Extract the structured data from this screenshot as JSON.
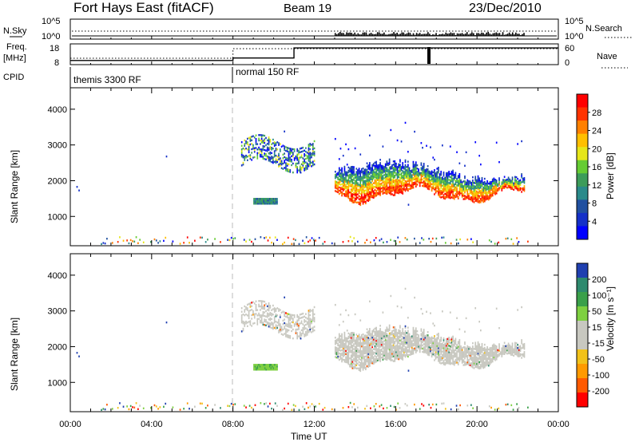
{
  "header": {
    "title": "Fort Hays East (fitACF)",
    "beam": "Beam 19",
    "date": "23/Dec/2010"
  },
  "top_panels": {
    "nsky_label": "N.Sky",
    "nsearch_label": "N.Search",
    "noise_ticks": [
      "10^5",
      "10^0"
    ],
    "freq_label_line1": "Freq.",
    "freq_label_line2": "[MHz]",
    "freq_ticks": [
      "18",
      "8"
    ],
    "nave_label": "Nave",
    "nave_ticks": [
      "60",
      "0"
    ],
    "cpid_label": "CPID",
    "cpid_segments": [
      {
        "label": "themis 3300 RF",
        "start_hour": 0,
        "end_hour": 8
      },
      {
        "label": "normal 150 RF",
        "start_hour": 8,
        "end_hour": 24
      }
    ]
  },
  "colorbars": {
    "power": {
      "label": "Power [dB]",
      "ticks": [
        "28",
        "24",
        "20",
        "16",
        "12",
        "8",
        "4"
      ],
      "colors": [
        "#ff0000",
        "#ff3300",
        "#ff8000",
        "#ffbf00",
        "#e6e619",
        "#66cc33",
        "#3c9c5a",
        "#2a8a8a",
        "#2050a0",
        "#1430c8",
        "#0000ff"
      ]
    },
    "velocity": {
      "label": "Velocity [m s⁻¹]",
      "ticks": [
        "200",
        "100",
        "50",
        "15",
        "-15",
        "-50",
        "-100",
        "-200"
      ],
      "colors": [
        "#2040b0",
        "#2e8a6e",
        "#3aa04a",
        "#7ed040",
        "#c8c8c0",
        "#c8c8c0",
        "#f2c21a",
        "#ff9a00",
        "#ff5a00",
        "#ff0000"
      ]
    }
  },
  "chart_data": {
    "type": "heatmap",
    "x_label": "Time UT",
    "x_ticks": [
      "00:00",
      "04:00",
      "08:00",
      "12:00",
      "16:00",
      "20:00",
      "00:00"
    ],
    "y_label": "Slant Range [km]",
    "y_ticks": [
      "1000",
      "2000",
      "3000",
      "4000"
    ],
    "xlim_hours": [
      0,
      24
    ],
    "ylim_km": [
      180,
      4600
    ],
    "grid": false,
    "cpid_change_hour": 8.0,
    "frequency_mhz": [
      {
        "start_hour": 0,
        "end_hour": 8.0,
        "value": 9.5
      },
      {
        "start_hour": 8.0,
        "end_hour": 11.0,
        "value": 11.0
      },
      {
        "start_hour": 11.0,
        "end_hour": 24.0,
        "value": 17.0
      }
    ],
    "echo_regions": [
      {
        "name": "patch-upper",
        "t_start": 8.4,
        "t_end": 12.0,
        "r_low": 2400,
        "r_high": 3100
      },
      {
        "name": "patch-low",
        "t_start": 9.0,
        "t_end": 10.2,
        "r_low": 1330,
        "r_high": 1480
      },
      {
        "name": "main-band",
        "t_start": 13.0,
        "t_end": 22.3,
        "r_low": 1400,
        "r_high": 2600
      },
      {
        "name": "near-range-ground",
        "t_start": 1.5,
        "t_end": 22.5,
        "r_low": 180,
        "r_high": 350
      }
    ]
  }
}
